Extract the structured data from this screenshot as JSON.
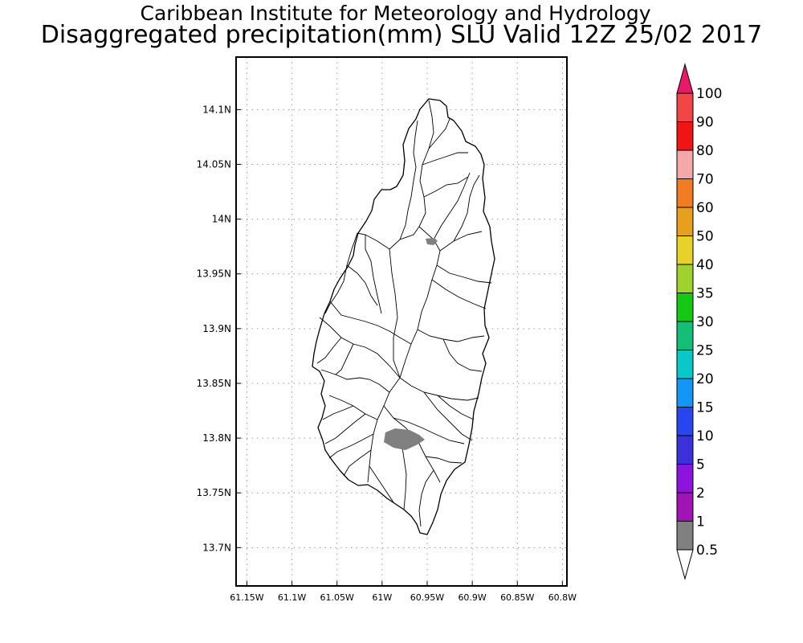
{
  "title": {
    "line1": "Caribbean Institute for Meteorology and Hydrology",
    "line2": "Disaggregated precipitation(mm) SLU Valid 12Z 25/02 2017"
  },
  "map": {
    "lon_ticks": [
      {
        "value": -61.15,
        "label": "61.15W"
      },
      {
        "value": -61.1,
        "label": "61.1W"
      },
      {
        "value": -61.05,
        "label": "61.05W"
      },
      {
        "value": -61.0,
        "label": "61W"
      },
      {
        "value": -60.95,
        "label": "60.95W"
      },
      {
        "value": -60.9,
        "label": "60.9W"
      },
      {
        "value": -60.85,
        "label": "60.85W"
      },
      {
        "value": -60.8,
        "label": "60.8W"
      }
    ],
    "lat_ticks": [
      {
        "value": 14.1,
        "label": "14.1N"
      },
      {
        "value": 14.05,
        "label": "14.05N"
      },
      {
        "value": 14.0,
        "label": "14N"
      },
      {
        "value": 13.95,
        "label": "13.95N"
      },
      {
        "value": 13.9,
        "label": "13.9N"
      },
      {
        "value": 13.85,
        "label": "13.85N"
      },
      {
        "value": 13.8,
        "label": "13.8N"
      },
      {
        "value": 13.75,
        "label": "13.75N"
      },
      {
        "value": 13.7,
        "label": "13.7N"
      }
    ],
    "lon_range": [
      -61.162,
      -60.795
    ],
    "lat_range": [
      13.665,
      14.148
    ],
    "precip_areas": [
      {
        "category": "0.5-1",
        "color": "#808080",
        "center": [
          -60.945,
          13.979
        ]
      },
      {
        "category": "0.5-1",
        "color": "#808080",
        "center": [
          -60.975,
          13.801
        ]
      }
    ]
  },
  "colorbar": {
    "labels": [
      "100",
      "90",
      "80",
      "70",
      "60",
      "50",
      "40",
      "35",
      "30",
      "25",
      "20",
      "15",
      "10",
      "5",
      "2",
      "1",
      "0.5"
    ],
    "colors": [
      "#e8186a",
      "#f04646",
      "#f01414",
      "#f5a8a8",
      "#f07d23",
      "#e6a01e",
      "#e6d228",
      "#9fd22d",
      "#14c814",
      "#14be78",
      "#0ac8c8",
      "#1496f5",
      "#2846f0",
      "#3c32dc",
      "#8c14dc",
      "#a014b4",
      "#808080",
      "#ffffff"
    ]
  }
}
